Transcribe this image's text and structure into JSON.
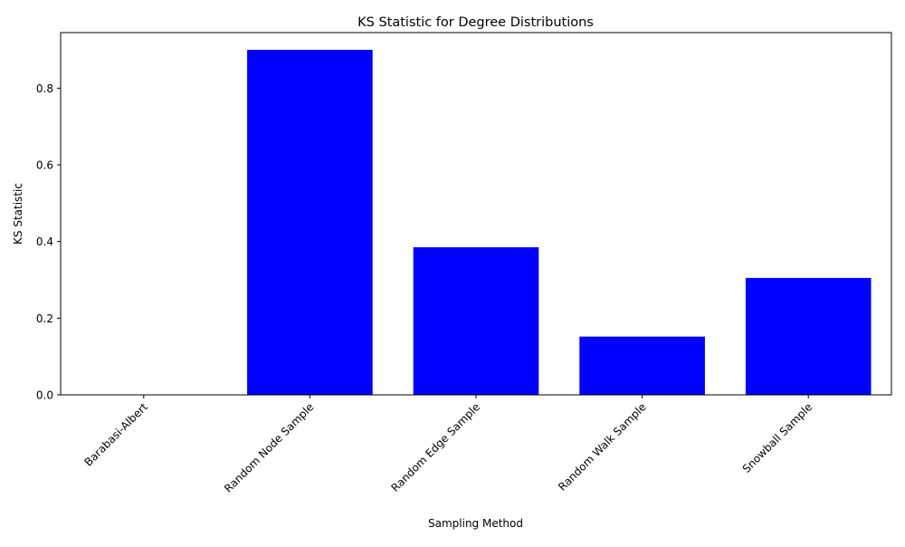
{
  "chart_data": {
    "type": "bar",
    "title": "KS Statistic for Degree Distributions",
    "xlabel": "Sampling Method",
    "ylabel": "KS Statistic",
    "categories": [
      "Barabasi-Albert",
      "Random Node Sample",
      "Random Edge Sample",
      "Random Walk Sample",
      "Snowball Sample"
    ],
    "values": [
      0.0,
      0.9,
      0.385,
      0.152,
      0.305
    ],
    "ylim": [
      0,
      0.945
    ],
    "yticks": [
      "0.0",
      "0.2",
      "0.4",
      "0.6",
      "0.8"
    ],
    "bar_color": "#0000ff",
    "grid": false,
    "xtick_rotation": "45"
  }
}
